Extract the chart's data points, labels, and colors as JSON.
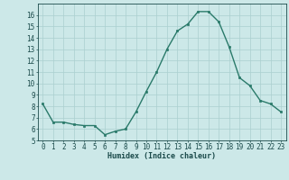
{
  "x": [
    0,
    1,
    2,
    3,
    4,
    5,
    6,
    7,
    8,
    9,
    10,
    11,
    12,
    13,
    14,
    15,
    16,
    17,
    18,
    19,
    20,
    21,
    22,
    23
  ],
  "y": [
    8.2,
    6.6,
    6.6,
    6.4,
    6.3,
    6.3,
    5.5,
    5.8,
    6.0,
    7.5,
    9.3,
    11.0,
    13.0,
    14.6,
    15.2,
    16.3,
    16.3,
    15.4,
    13.2,
    10.5,
    9.8,
    8.5,
    8.2,
    7.5
  ],
  "line_color": "#2a7a6a",
  "marker": "s",
  "marker_size": 2.0,
  "bg_color": "#cce8e8",
  "grid_color": "#aacfcf",
  "tick_color": "#1a4a4a",
  "xlabel": "Humidex (Indice chaleur)",
  "ylim": [
    5,
    17
  ],
  "xlim": [
    -0.5,
    23.5
  ],
  "yticks": [
    5,
    6,
    7,
    8,
    9,
    10,
    11,
    12,
    13,
    14,
    15,
    16
  ],
  "xticks": [
    0,
    1,
    2,
    3,
    4,
    5,
    6,
    7,
    8,
    9,
    10,
    11,
    12,
    13,
    14,
    15,
    16,
    17,
    18,
    19,
    20,
    21,
    22,
    23
  ],
  "xlabel_fontsize": 6.0,
  "tick_fontsize": 5.5,
  "linewidth": 1.0
}
